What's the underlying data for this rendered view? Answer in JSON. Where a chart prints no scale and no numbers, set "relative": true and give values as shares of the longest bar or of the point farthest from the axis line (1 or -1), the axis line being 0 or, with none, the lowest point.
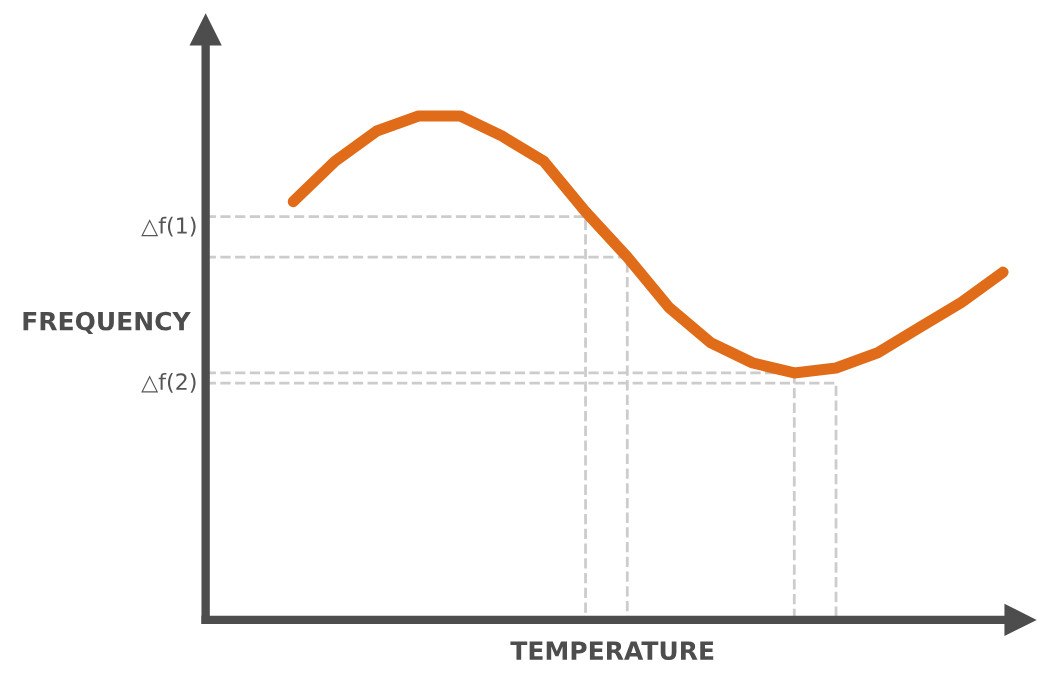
{
  "chart_data": {
    "type": "line",
    "relative": true,
    "xlabel": "TEMPERATURE",
    "ylabel": "FREQUENCY",
    "marker": "none",
    "line_style": "solid",
    "categories": [
      null,
      null,
      null,
      null,
      null,
      null,
      null,
      null,
      null,
      null,
      null,
      null,
      null,
      null,
      null,
      null,
      null,
      null
    ],
    "series": [
      {
        "color": "#e06c1a",
        "values": [
          0.83,
          0.91,
          0.97,
          1.0,
          1.0,
          0.96,
          0.91,
          0.81,
          0.72,
          0.62,
          0.55,
          0.51,
          0.49,
          0.5,
          0.53,
          0.58,
          0.63,
          0.69
        ]
      }
    ],
    "ref_lines": [
      {
        "axis": "y",
        "value": 0.8,
        "label": "△f(1)",
        "color": "#cccccc",
        "line_style": "dashed"
      },
      {
        "axis": "y",
        "value": 0.72,
        "color": "#cccccc",
        "line_style": "dashed"
      },
      {
        "axis": "y",
        "value": 0.49,
        "label": "△f(2)",
        "color": "#cccccc",
        "line_style": "dashed"
      },
      {
        "axis": "y",
        "value": 0.47,
        "color": "#cccccc",
        "line_style": "dashed"
      }
    ]
  }
}
